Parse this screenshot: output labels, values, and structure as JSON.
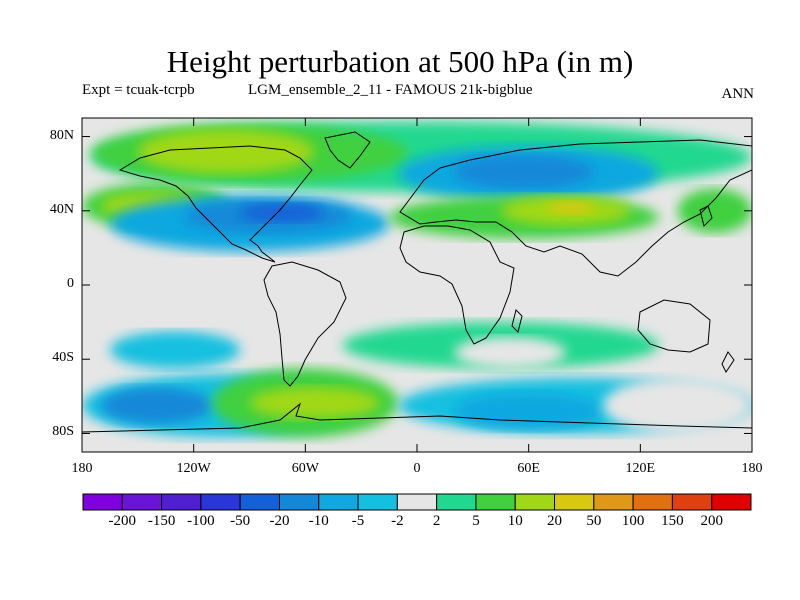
{
  "title": "Height perturbation at 500 hPa (in m)",
  "subtitle_left": "Expt = tcuak-tcrpb",
  "subtitle_mid": "LGM_ensemble_2_11 - FAMOUS 21k-bigblue",
  "subtitle_right": "ANN",
  "lat_ticks": [
    "80N",
    "40N",
    "0",
    "40S",
    "80S"
  ],
  "lon_ticks": [
    "180",
    "120W",
    "60W",
    "0",
    "60E",
    "120E",
    "180"
  ],
  "colorbar": {
    "labels": [
      "-200",
      "-150",
      "-100",
      "-50",
      "-20",
      "-10",
      "-5",
      "-2",
      "2",
      "5",
      "10",
      "20",
      "50",
      "100",
      "150",
      "200"
    ],
    "colors": [
      "#8000e0",
      "#6a14d8",
      "#5020d0",
      "#2a36d8",
      "#1460d8",
      "#1488d8",
      "#10a8e0",
      "#14c0e0",
      "#e6e6e6",
      "#20d890",
      "#40d040",
      "#a0d818",
      "#d8c810",
      "#e09818",
      "#e07010",
      "#e04010",
      "#e00000"
    ]
  },
  "chart_data": {
    "type": "map-contour",
    "projection": "cylindrical-equidistant",
    "field": "500 hPa height perturbation",
    "units": "m",
    "lon_range": [
      -180,
      180
    ],
    "lat_range": [
      -90,
      90
    ],
    "levels": [
      -200,
      -150,
      -100,
      -50,
      -20,
      -10,
      -5,
      -2,
      2,
      5,
      10,
      20,
      50,
      100,
      150,
      200
    ],
    "regions": [
      {
        "lon": [
          -180,
          180
        ],
        "lat": [
          -90,
          90
        ],
        "level": 8
      },
      {
        "lon": [
          -175,
          180
        ],
        "lat": [
          50,
          88
        ],
        "level": 9
      },
      {
        "lon": [
          -175,
          -5
        ],
        "lat": [
          55,
          87
        ],
        "level": 10
      },
      {
        "lon": [
          -150,
          -55
        ],
        "lat": [
          60,
          84
        ],
        "level": 11
      },
      {
        "lon": [
          -180,
          -100
        ],
        "lat": [
          30,
          55
        ],
        "level": 10
      },
      {
        "lon": [
          -170,
          -115
        ],
        "lat": [
          35,
          50
        ],
        "level": 11
      },
      {
        "lon": [
          -165,
          -15
        ],
        "lat": [
          18,
          48
        ],
        "level": 6
      },
      {
        "lon": [
          -125,
          -35
        ],
        "lat": [
          28,
          46
        ],
        "level": 5
      },
      {
        "lon": [
          -95,
          -50
        ],
        "lat": [
          34,
          44
        ],
        "level": 4
      },
      {
        "lon": [
          -10,
          130
        ],
        "lat": [
          45,
          75
        ],
        "level": 6
      },
      {
        "lon": [
          20,
          95
        ],
        "lat": [
          52,
          70
        ],
        "level": 5
      },
      {
        "lon": [
          -15,
          130
        ],
        "lat": [
          25,
          48
        ],
        "level": 10
      },
      {
        "lon": [
          45,
          115
        ],
        "lat": [
          32,
          48
        ],
        "level": 11
      },
      {
        "lon": [
          70,
          95
        ],
        "lat": [
          38,
          45
        ],
        "level": 12
      },
      {
        "lon": [
          140,
          180
        ],
        "lat": [
          28,
          52
        ],
        "level": 10
      },
      {
        "lon": [
          -165,
          -95
        ],
        "lat": [
          -45,
          -25
        ],
        "level": 7
      },
      {
        "lon": [
          -180,
          -30
        ],
        "lat": [
          -82,
          -48
        ],
        "level": 7
      },
      {
        "lon": [
          -170,
          -110
        ],
        "lat": [
          -75,
          -55
        ],
        "level": 5
      },
      {
        "lon": [
          -110,
          -10
        ],
        "lat": [
          -82,
          -45
        ],
        "level": 10
      },
      {
        "lon": [
          -90,
          -20
        ],
        "lat": [
          -72,
          -55
        ],
        "level": 11
      },
      {
        "lon": [
          -40,
          130
        ],
        "lat": [
          -45,
          -20
        ],
        "level": 9
      },
      {
        "lon": [
          20,
          80
        ],
        "lat": [
          -45,
          -28
        ],
        "level": 8
      },
      {
        "lon": [
          -10,
          180
        ],
        "lat": [
          -80,
          -50
        ],
        "level": 7
      },
      {
        "lon": [
          20,
          100
        ],
        "lat": [
          -78,
          -58
        ],
        "level": 6
      },
      {
        "lon": [
          100,
          180
        ],
        "lat": [
          -80,
          -50
        ],
        "level": 8
      }
    ]
  }
}
